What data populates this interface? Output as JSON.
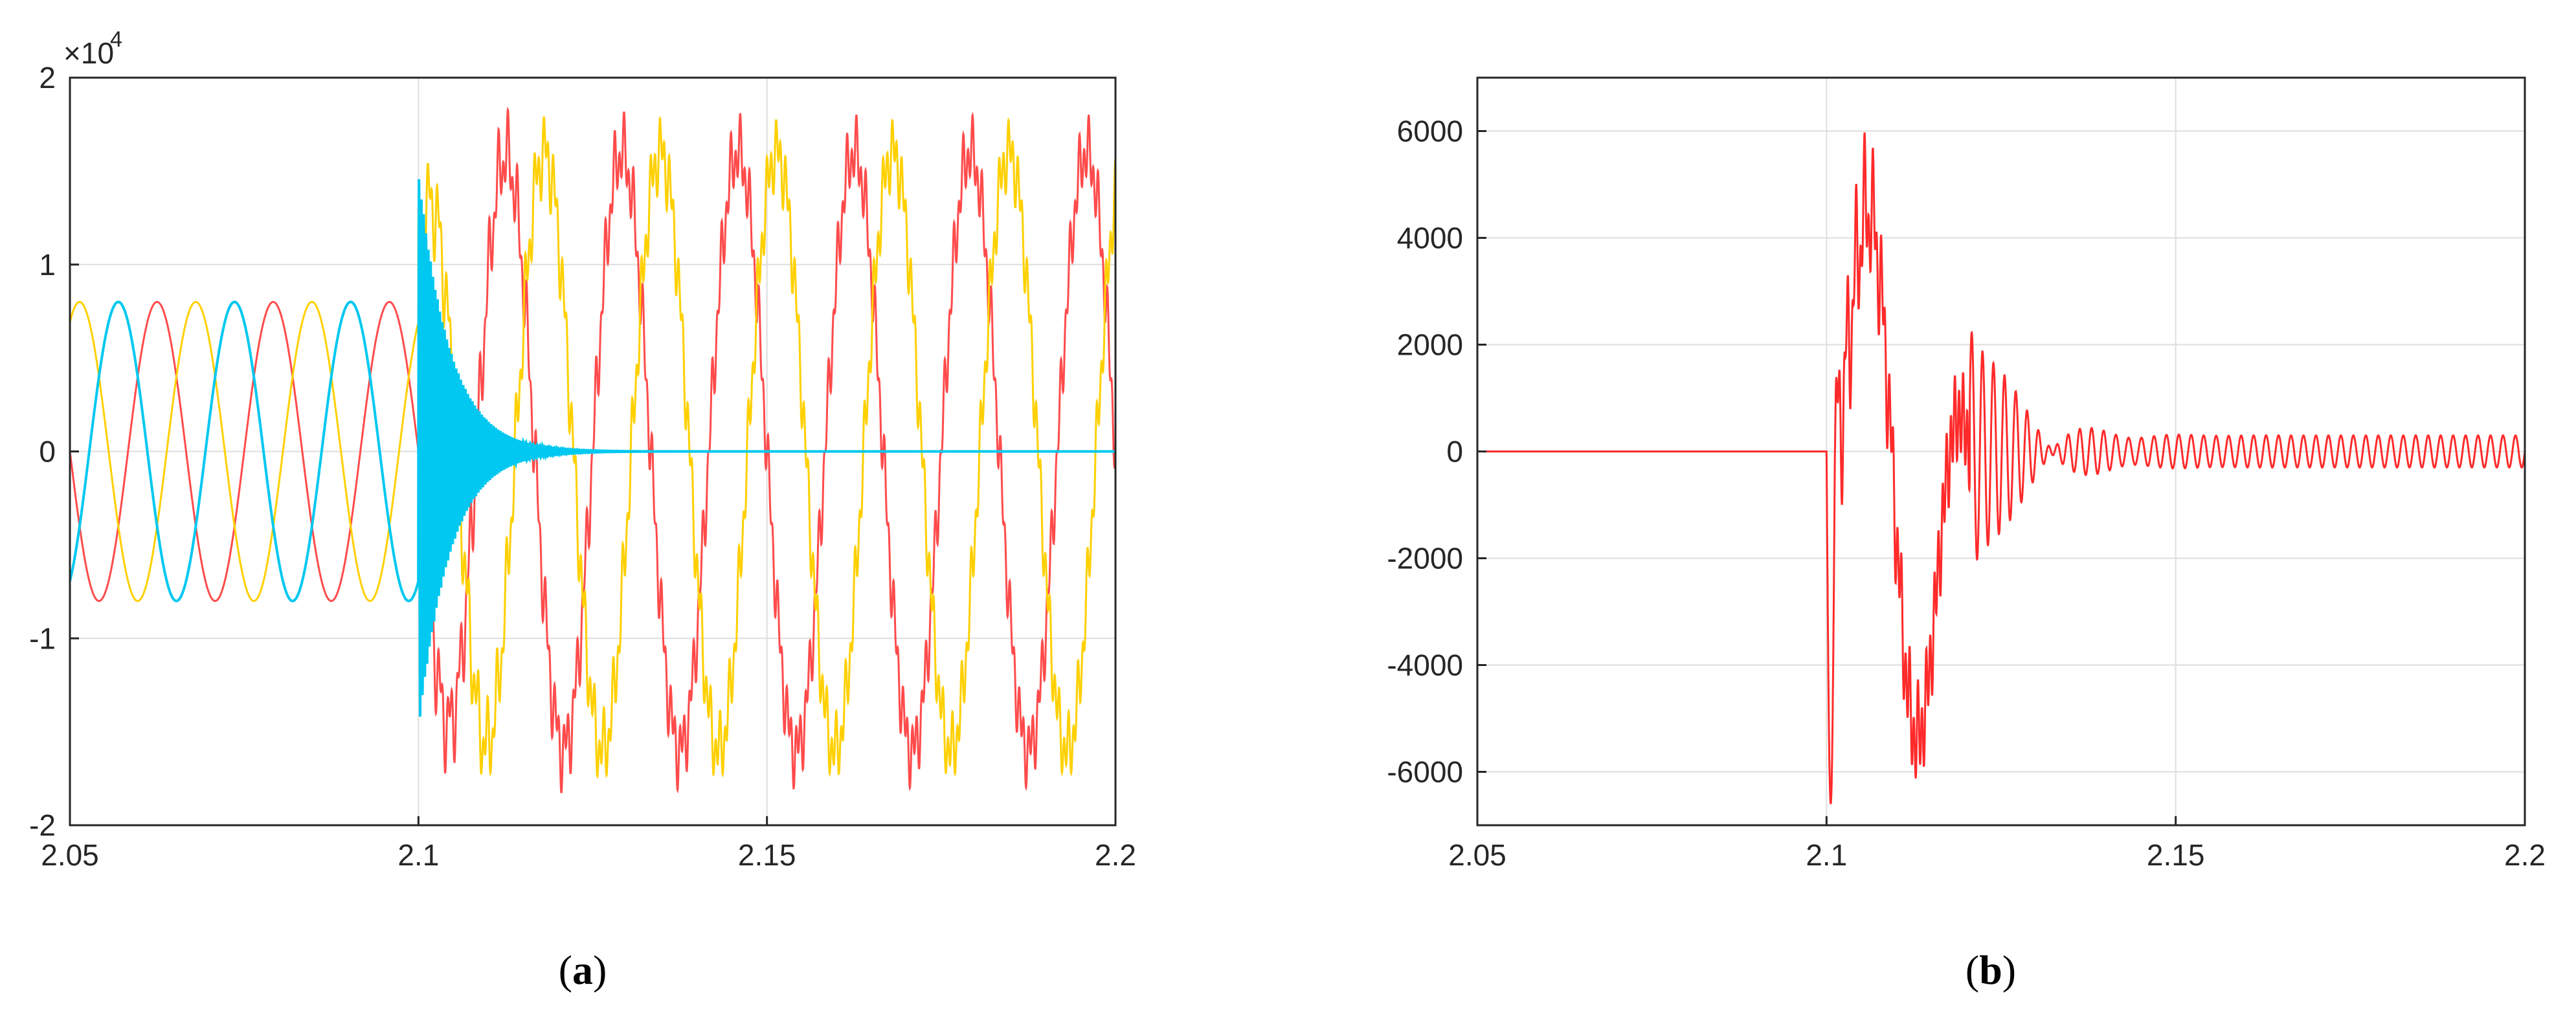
{
  "chart_data": [
    {
      "type": "line",
      "panel_label": "a",
      "xlim": [
        2.05,
        2.2
      ],
      "ylim": [
        -2,
        2
      ],
      "y_exponent_label": "×10",
      "y_exponent_power": "4",
      "x_ticks": [
        "2.05",
        "2.1",
        "2.15",
        "2.2"
      ],
      "y_ticks": [
        "-2",
        "-1",
        "0",
        "1",
        "2"
      ],
      "grid": true,
      "fault_time": 2.1,
      "pre_fault_amplitude": 0.8,
      "post_fault_amplitude": 1.6,
      "frequency_hz": 60,
      "series": [
        {
          "color": "#ff4b4b",
          "phase_deg": 180,
          "post_fault": "overcurrent"
        },
        {
          "color": "#ffd000",
          "phase_deg": 60,
          "post_fault": "overcurrent"
        },
        {
          "color": "#00c8f0",
          "phase_deg": -60,
          "post_fault": "decaying"
        }
      ]
    },
    {
      "type": "line",
      "panel_label": "b",
      "xlim": [
        2.05,
        2.2
      ],
      "ylim": [
        -7000,
        7000
      ],
      "x_ticks": [
        "2.05",
        "2.1",
        "2.15",
        "2.2"
      ],
      "y_ticks": [
        "6000",
        "4000",
        "2000",
        "0",
        "-2000",
        "-4000",
        "-6000"
      ],
      "grid": true,
      "fault_time": 2.1,
      "peak_max": 6600,
      "peak_min": -6800,
      "series": [
        {
          "color": "#ff2a2a"
        }
      ]
    }
  ],
  "captions": {
    "a_open": "(",
    "a_label": "a",
    "a_close": ")",
    "b_open": "(",
    "b_label": "b",
    "b_close": ")"
  }
}
